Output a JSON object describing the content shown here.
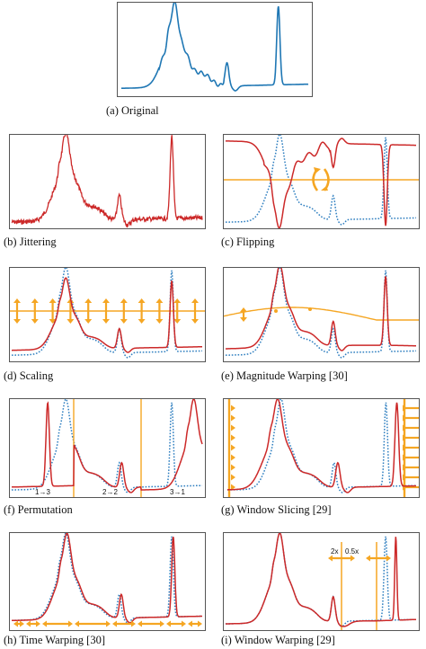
{
  "colors": {
    "original": "#1f77b4",
    "augmented": "#cc2929",
    "reference": "#2f7fc0",
    "annotation": "#f5a623",
    "border": "#555555"
  },
  "panels": {
    "a": {
      "caption": "(a)  Original"
    },
    "b": {
      "caption": "(b)  Jittering"
    },
    "c": {
      "caption": "(c)  Flipping"
    },
    "d": {
      "caption": "(d)  Scaling"
    },
    "e": {
      "caption": "(e)  Magnitude  Warping [30]"
    },
    "f": {
      "caption": "(f)  Permutation",
      "segment_labels": [
        "1→3",
        "2→2",
        "3→1"
      ]
    },
    "g": {
      "caption": "(g)  Window  Slicing [29]"
    },
    "h": {
      "caption": "(h)  Time  Warping [30]"
    },
    "i": {
      "caption": "(i)  Window  Warping [29]",
      "speed_labels": [
        "2x",
        "0.5x"
      ]
    }
  }
}
